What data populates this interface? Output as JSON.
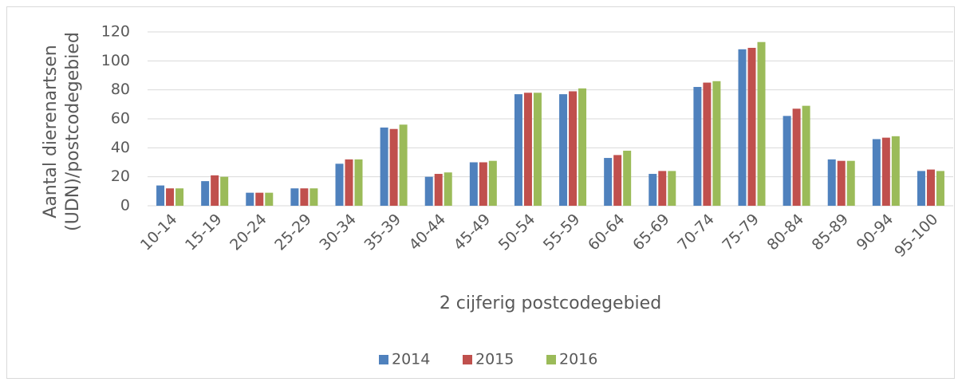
{
  "chart_data": {
    "type": "bar",
    "y_label": [
      "Aantal dierenartsen",
      "(UDN)/postcodegebied"
    ],
    "x_label": "2 cijferig postcodegebied",
    "categories": [
      "10-14",
      "15-19",
      "20-24",
      "25-29",
      "30-34",
      "35-39",
      "40-44",
      "45-49",
      "50-54",
      "55-59",
      "60-64",
      "65-69",
      "70-74",
      "75-79",
      "80-84",
      "85-89",
      "90-94",
      "95-100"
    ],
    "series": [
      {
        "name": "2014",
        "color": "#4f81bd",
        "values": [
          14,
          17,
          9,
          12,
          29,
          54,
          20,
          30,
          77,
          77,
          33,
          22,
          82,
          108,
          62,
          32,
          46,
          24
        ]
      },
      {
        "name": "2015",
        "color": "#c0504d",
        "values": [
          12,
          21,
          9,
          12,
          32,
          53,
          22,
          30,
          78,
          79,
          35,
          24,
          85,
          109,
          67,
          31,
          47,
          25
        ]
      },
      {
        "name": "2016",
        "color": "#9bbb59",
        "values": [
          12,
          20,
          9,
          12,
          32,
          56,
          23,
          31,
          78,
          81,
          38,
          24,
          86,
          113,
          69,
          31,
          48,
          24
        ]
      }
    ],
    "ylim": [
      0,
      120
    ],
    "yticks": [
      0,
      20,
      40,
      60,
      80,
      100,
      120
    ],
    "grid": true,
    "legend": "bottom"
  }
}
